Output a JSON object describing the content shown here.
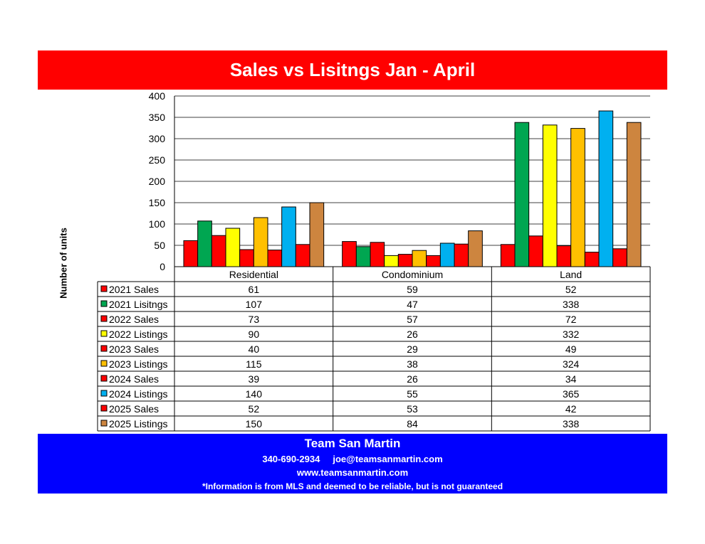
{
  "header": {
    "title": "Sales vs Lisitngs Jan - April"
  },
  "colors": {
    "title_band": "#ff0000",
    "footer_band": "#0000ff"
  },
  "chart_data": {
    "type": "bar",
    "title": "Sales vs Lisitngs Jan - April",
    "xlabel": "",
    "ylabel": "Number of units",
    "ylim": [
      0,
      400
    ],
    "yticks": [
      0,
      50,
      100,
      150,
      200,
      250,
      300,
      350,
      400
    ],
    "grid": true,
    "legend": "data-table-below",
    "categories": [
      "Residential",
      "Condominium",
      "Land"
    ],
    "series": [
      {
        "name": "2021 Sales",
        "color": "#ff0000",
        "values": [
          61,
          59,
          52
        ]
      },
      {
        "name": "2021 Lisitngs",
        "color": "#00a651",
        "values": [
          107,
          47,
          338
        ]
      },
      {
        "name": "2022 Sales",
        "color": "#ff0000",
        "values": [
          73,
          57,
          72
        ]
      },
      {
        "name": "2022 Listings",
        "color": "#ffff00",
        "values": [
          90,
          26,
          332
        ]
      },
      {
        "name": "2023 Sales",
        "color": "#ff0000",
        "values": [
          40,
          29,
          49
        ]
      },
      {
        "name": "2023 Listings",
        "color": "#ffc000",
        "values": [
          115,
          38,
          324
        ]
      },
      {
        "name": "2024 Sales",
        "color": "#ff0000",
        "values": [
          39,
          26,
          34
        ]
      },
      {
        "name": "2024 Listings",
        "color": "#00b0f0",
        "values": [
          140,
          55,
          365
        ]
      },
      {
        "name": "2025 Sales",
        "color": "#ff0000",
        "values": [
          52,
          53,
          42
        ]
      },
      {
        "name": "2025 Listings",
        "color": "#cd853f",
        "values": [
          150,
          84,
          338
        ]
      }
    ]
  },
  "footer": {
    "name": "Team San Martin",
    "phone": "340-690-2934",
    "email": "joe@teamsanmartin.com",
    "website": "www.teamsanmartin.com",
    "disclaimer": "*Information is from MLS and deemed to be reliable, but is not guaranteed"
  }
}
